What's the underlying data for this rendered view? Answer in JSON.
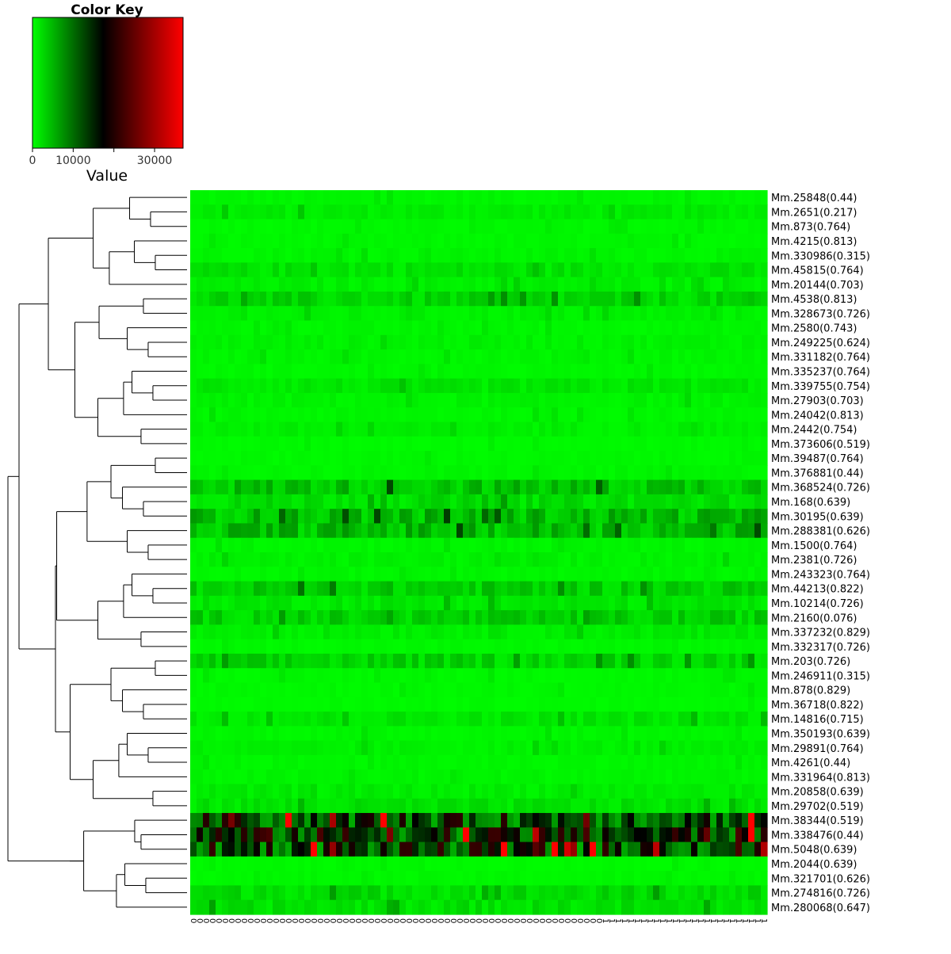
{
  "colors": {
    "low": "#00ff00",
    "mid": "#000000",
    "high": "#ff0000",
    "line": "#000000",
    "background": "#ffffff"
  },
  "color_key": {
    "title": "Color Key",
    "axis_label": "Value",
    "range": [
      0,
      37000
    ],
    "tick_values": [
      0,
      10000,
      20000,
      30000
    ],
    "tick_labels": [
      "0",
      "10000",
      "",
      "30000"
    ]
  },
  "chart_data": {
    "type": "heatmap",
    "row_labels": [
      "Mm.25848(0.44)",
      "Mm.2651(0.217)",
      "Mm.873(0.764)",
      "Mm.4215(0.813)",
      "Mm.330986(0.315)",
      "Mm.45815(0.764)",
      "Mm.20144(0.703)",
      "Mm.4538(0.813)",
      "Mm.328673(0.726)",
      "Mm.2580(0.743)",
      "Mm.249225(0.624)",
      "Mm.331182(0.764)",
      "Mm.335237(0.764)",
      "Mm.339755(0.754)",
      "Mm.27903(0.703)",
      "Mm.24042(0.813)",
      "Mm.2442(0.754)",
      "Mm.373606(0.519)",
      "Mm.39487(0.764)",
      "Mm.376881(0.44)",
      "Mm.368524(0.726)",
      "Mm.168(0.639)",
      "Mm.30195(0.639)",
      "Mm.288381(0.626)",
      "Mm.1500(0.764)",
      "Mm.2381(0.726)",
      "Mm.243323(0.764)",
      "Mm.44213(0.822)",
      "Mm.10214(0.726)",
      "Mm.2160(0.076)",
      "Mm.337232(0.829)",
      "Mm.332317(0.726)",
      "Mm.203(0.726)",
      "Mm.246911(0.315)",
      "Mm.878(0.829)",
      "Mm.36718(0.822)",
      "Mm.14816(0.715)",
      "Mm.350193(0.639)",
      "Mm.29891(0.764)",
      "Mm.4261(0.44)",
      "Mm.331964(0.813)",
      "Mm.20858(0.639)",
      "Mm.29702(0.519)",
      "Mm.38344(0.519)",
      "Mm.338476(0.44)",
      "Mm.5048(0.639)",
      "Mm.2044(0.639)",
      "Mm.321701(0.626)",
      "Mm.274816(0.726)",
      "Mm.280068(0.647)"
    ],
    "column_labels": [
      "0",
      "0",
      "0",
      "0",
      "0",
      "0",
      "0",
      "0",
      "0",
      "0",
      "0",
      "0",
      "0",
      "0",
      "0",
      "0",
      "0",
      "0",
      "0",
      "0",
      "0",
      "0",
      "0",
      "0",
      "0",
      "0",
      "0",
      "0",
      "0",
      "0",
      "0",
      "0",
      "0",
      "0",
      "0",
      "0",
      "0",
      "0",
      "0",
      "0",
      "0",
      "0",
      "0",
      "0",
      "0",
      "0",
      "0",
      "0",
      "0",
      "0",
      "0",
      "0",
      "0",
      "0",
      "0",
      "0",
      "0",
      "0",
      "0",
      "0",
      "0",
      "0",
      "0",
      "0",
      "0",
      "1",
      "1",
      "1",
      "1",
      "1",
      "1",
      "1",
      "1",
      "1",
      "1",
      "1",
      "1",
      "1",
      "1",
      "1",
      "1",
      "1",
      "1",
      "1",
      "1",
      "1",
      "1",
      "1",
      "1",
      "1",
      "1"
    ],
    "value_range": [
      0,
      37000
    ],
    "row_baselines": [
      600,
      1200,
      500,
      500,
      700,
      1800,
      1000,
      2600,
      900,
      600,
      900,
      700,
      500,
      1500,
      800,
      600,
      1000,
      400,
      500,
      600,
      4000,
      2200,
      4500,
      4500,
      700,
      900,
      600,
      3200,
      1600,
      3000,
      1300,
      500,
      2800,
      500,
      500,
      400,
      1600,
      600,
      900,
      600,
      700,
      1200,
      1800,
      13000,
      14500,
      13500,
      400,
      500,
      2400,
      2000
    ],
    "highlight_cells": [
      {
        "row": 22,
        "col": 24,
        "value": 12000
      },
      {
        "row": 22,
        "col": 48,
        "value": 11500
      },
      {
        "row": 7,
        "col": 52,
        "value": 7000
      },
      {
        "row": 43,
        "col": 88,
        "value": 37000
      },
      {
        "row": 44,
        "col": 88,
        "value": 37000
      },
      {
        "row": 43,
        "col": 62,
        "value": 26000
      },
      {
        "row": 44,
        "col": 31,
        "value": 27000
      },
      {
        "row": 45,
        "col": 54,
        "value": 24000
      },
      {
        "row": 44,
        "col": 81,
        "value": 25000
      },
      {
        "row": 45,
        "col": 86,
        "value": 23000
      },
      {
        "row": 32,
        "col": 78,
        "value": 7000
      },
      {
        "row": 32,
        "col": 88,
        "value": 7000
      }
    ],
    "dendrogram_merges": [
      [
        1,
        2
      ],
      [
        4,
        5
      ],
      [
        -2,
        3
      ],
      [
        6,
        7
      ],
      [
        -1,
        -3
      ],
      [
        -5,
        -4
      ],
      [
        9,
        10
      ],
      [
        8,
        -7
      ],
      [
        11,
        -8
      ],
      [
        12,
        13
      ],
      [
        -9,
        -10
      ],
      [
        14,
        15
      ],
      [
        16,
        -12
      ],
      [
        17,
        18
      ],
      [
        -13,
        -14
      ],
      [
        -11,
        -15
      ],
      [
        19,
        20
      ],
      [
        22,
        23
      ],
      [
        24,
        -18
      ],
      [
        -17,
        21
      ],
      [
        -19,
        -20
      ],
      [
        -16,
        -21
      ],
      [
        25,
        26
      ],
      [
        -23,
        27
      ],
      [
        29,
        30
      ],
      [
        -24,
        28
      ],
      [
        31,
        32
      ],
      [
        -25,
        -26
      ],
      [
        -22,
        -27
      ],
      [
        33,
        34
      ],
      [
        -30,
        35
      ],
      [
        37,
        38
      ],
      [
        -31,
        36
      ],
      [
        39,
        40
      ],
      [
        -32,
        -33
      ],
      [
        42,
        43
      ],
      [
        41,
        -35
      ],
      [
        -36,
        -34
      ],
      [
        -37,
        -38
      ],
      [
        44,
        45
      ],
      [
        46,
        47
      ],
      [
        49,
        50
      ],
      [
        -41,
        -42
      ],
      [
        -40,
        48
      ],
      [
        -44,
        -43
      ],
      [
        -45,
        -39
      ],
      [
        -29,
        -46
      ],
      [
        -47,
        -28
      ],
      [
        -6,
        -48
      ],
      [
        -49,
        -50
      ],
      [
        -11,
        -11
      ]
    ]
  }
}
